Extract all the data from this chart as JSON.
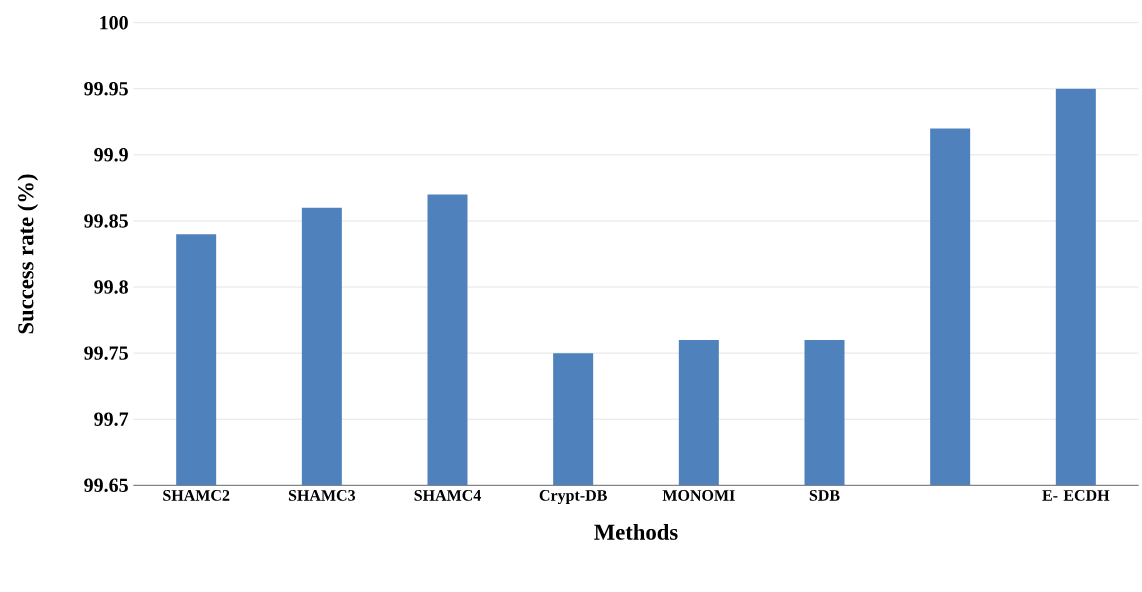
{
  "chart_data": {
    "type": "bar",
    "xlabel": "Methods",
    "ylabel": "Success rate (%)",
    "categories": [
      "SHAMC2",
      "SHAMC3",
      "SHAMC4",
      "Crypt-DB",
      "MONOMI",
      "SDB",
      null,
      "E- ECDH"
    ],
    "values": [
      99.84,
      99.86,
      99.87,
      99.75,
      99.76,
      99.76,
      99.92,
      99.95
    ],
    "color": "#4f81bd",
    "ylim": [
      99.65,
      100
    ],
    "yticks": [
      {
        "value": 99.65,
        "label": "99.65"
      },
      {
        "value": 99.7,
        "label": "99.7"
      },
      {
        "value": 99.75,
        "label": "99.75"
      },
      {
        "value": 99.8,
        "label": "99.8"
      },
      {
        "value": 99.85,
        "label": "99.85"
      },
      {
        "value": 99.9,
        "label": "99.9"
      },
      {
        "value": 99.95,
        "label": "99.95"
      },
      {
        "value": 100,
        "label": "100"
      }
    ],
    "grid": "y"
  }
}
